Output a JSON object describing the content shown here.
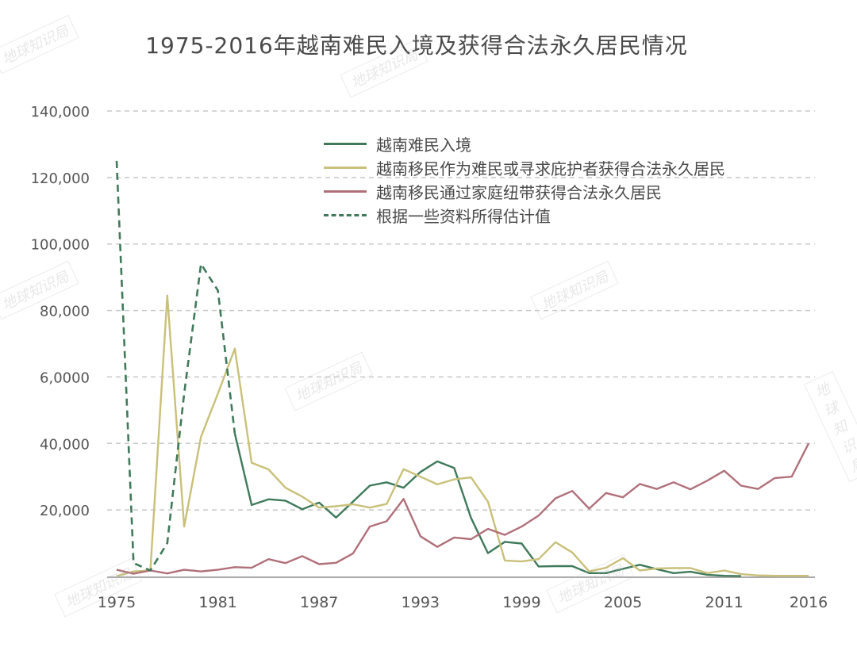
{
  "title": "1975-2016年越南难民入境及获得合法永久居民情况",
  "watermark": "地球知识局",
  "colors": {
    "arrivals": "#3f7a5a",
    "refugee_lpr": "#c9c07a",
    "family_lpr": "#b0707a",
    "estimate": "#3f7a5a",
    "grid": "#c8c8c8",
    "axis": "#aaaaaa"
  },
  "legend": [
    {
      "label": "越南难民入境",
      "key": "arrivals",
      "style": "solid"
    },
    {
      "label": "越南移民作为难民或寻求庇护者获得合法永久居民",
      "key": "refugee_lpr",
      "style": "solid"
    },
    {
      "label": "越南移民通过家庭纽带获得合法永久居民",
      "key": "family_lpr",
      "style": "solid"
    },
    {
      "label": "根据一些资料所得估计值",
      "key": "estimate",
      "style": "dashed"
    }
  ],
  "y_axis": {
    "ticks": [
      {
        "value": 140000,
        "label": "140,000"
      },
      {
        "value": 120000,
        "label": "120,000"
      },
      {
        "value": 100000,
        "label": "100,000"
      },
      {
        "value": 80000,
        "label": "80,000"
      },
      {
        "value": 60000,
        "label": "6,0000"
      },
      {
        "value": 40000,
        "label": "40,000"
      },
      {
        "value": 20000,
        "label": "20,000"
      }
    ]
  },
  "x_axis": {
    "ticks": [
      {
        "value": 1975,
        "label": "1975"
      },
      {
        "value": 1981,
        "label": "1981"
      },
      {
        "value": 1987,
        "label": "1987"
      },
      {
        "value": 1993,
        "label": "1993"
      },
      {
        "value": 1999,
        "label": "1999"
      },
      {
        "value": 2005,
        "label": "2005"
      },
      {
        "value": 2011,
        "label": "2011"
      },
      {
        "value": 2016,
        "label": "2016"
      }
    ]
  },
  "chart_data": {
    "type": "line",
    "title": "1975-2016年越南难民入境及获得合法永久居民情况",
    "xlabel": "",
    "ylabel": "",
    "xlim": [
      1975,
      2016
    ],
    "ylim": [
      0,
      140000
    ],
    "grid": true,
    "legend_position": "upper-center",
    "series": [
      {
        "name": "越南难民入境",
        "key": "arrivals",
        "style": "solid",
        "x": [
          1982,
          1983,
          1984,
          1985,
          1986,
          1987,
          1988,
          1989,
          1990,
          1991,
          1992,
          1993,
          1994,
          1995,
          1996,
          1997,
          1998,
          1999,
          2000,
          2001,
          2002,
          2003,
          2004,
          2005,
          2006,
          2007,
          2008,
          2009,
          2010,
          2011,
          2012
        ],
        "values": [
          43000,
          21500,
          23200,
          22800,
          20200,
          22200,
          17700,
          22500,
          27300,
          28300,
          26700,
          31400,
          34600,
          32600,
          17600,
          7000,
          10400,
          9900,
          3000,
          3100,
          3100,
          1000,
          1000,
          2300,
          3500,
          2200,
          1000,
          1400,
          500,
          200,
          100
        ]
      },
      {
        "name": "越南移民作为难民或寻求庇护者获得合法永久居民",
        "key": "refugee_lpr",
        "style": "solid",
        "x": [
          1975,
          1976,
          1977,
          1978,
          1979,
          1980,
          1981,
          1982,
          1983,
          1984,
          1985,
          1986,
          1987,
          1988,
          1989,
          1990,
          1991,
          1992,
          1993,
          1994,
          1995,
          1996,
          1997,
          1998,
          1999,
          2000,
          2001,
          2002,
          2003,
          2004,
          2005,
          2006,
          2007,
          2008,
          2009,
          2010,
          2011,
          2012,
          2013,
          2014,
          2015,
          2016
        ],
        "values": [
          100,
          1500,
          1800,
          84500,
          15000,
          42000,
          55000,
          68500,
          34200,
          32200,
          26700,
          24000,
          20700,
          21100,
          21700,
          20700,
          21800,
          32300,
          30000,
          27700,
          29200,
          29800,
          22500,
          4800,
          4500,
          5200,
          10300,
          7200,
          1500,
          2600,
          5500,
          1800,
          2400,
          2500,
          2500,
          1000,
          1800,
          700,
          300,
          200,
          200,
          200
        ]
      },
      {
        "name": "越南移民通过家庭纽带获得合法永久居民",
        "key": "family_lpr",
        "style": "solid",
        "x": [
          1975,
          1976,
          1977,
          1978,
          1979,
          1980,
          1981,
          1982,
          1983,
          1984,
          1985,
          1986,
          1987,
          1988,
          1989,
          1990,
          1991,
          1992,
          1993,
          1994,
          1995,
          1996,
          1997,
          1998,
          1999,
          2000,
          2001,
          2002,
          2003,
          2004,
          2005,
          2006,
          2007,
          2008,
          2009,
          2010,
          2011,
          2012,
          2013,
          2014,
          2015,
          2016
        ],
        "values": [
          2000,
          800,
          1800,
          900,
          2000,
          1500,
          2000,
          2800,
          2600,
          5200,
          4000,
          6100,
          3700,
          4100,
          6900,
          15000,
          16600,
          23300,
          12100,
          8900,
          11700,
          11200,
          14300,
          12500,
          15000,
          18300,
          23500,
          25700,
          20400,
          25100,
          23800,
          27800,
          26300,
          28300,
          26200,
          28800,
          31800,
          27300,
          26300,
          29600,
          30000,
          40000
        ]
      },
      {
        "name": "根据一些资料所得估计值",
        "key": "estimate",
        "style": "dashed",
        "x": [
          1975,
          1976,
          1977,
          1978,
          1979,
          1980,
          1981,
          1982
        ],
        "values": [
          125000,
          4000,
          1800,
          10000,
          55000,
          94000,
          86000,
          43000
        ]
      }
    ]
  }
}
